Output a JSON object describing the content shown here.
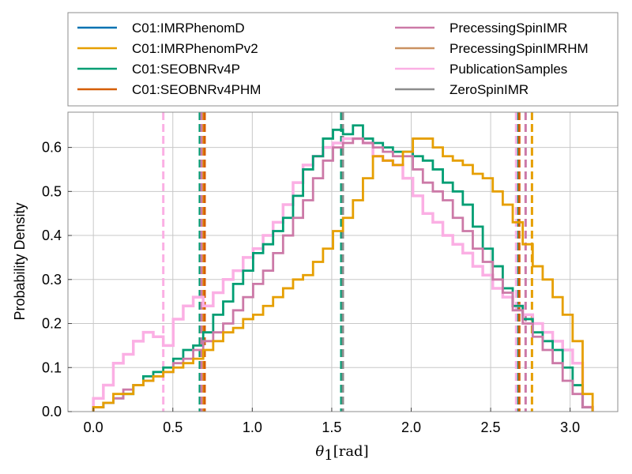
{
  "chart_data": {
    "type": "histogram",
    "xlabel": "θ₁[rad]",
    "xlabel_symbol": "θ",
    "xlabel_subscript": "1",
    "xlabel_unit": "[rad]",
    "ylabel": "Probability Density",
    "xlim": [
      -0.16,
      3.3
    ],
    "ylim": [
      0.0,
      0.68
    ],
    "xticks": [
      0.0,
      0.5,
      1.0,
      1.5,
      2.0,
      2.5,
      3.0
    ],
    "xtick_labels": [
      "0.0",
      "0.5",
      "1.0",
      "1.5",
      "2.0",
      "2.5",
      "3.0"
    ],
    "yticks": [
      0.0,
      0.1,
      0.2,
      0.3,
      0.4,
      0.5,
      0.6
    ],
    "ytick_labels": [
      "0.0",
      "0.1",
      "0.2",
      "0.3",
      "0.4",
      "0.5",
      "0.6"
    ],
    "grid": true,
    "legend_placement": "above plot, two columns",
    "bins": {
      "start": 0.0,
      "end": 3.1416,
      "count": 50
    },
    "series": [
      {
        "name": "C01:IMRPhenomD",
        "color": "#0072b2",
        "lines": [],
        "values": []
      },
      {
        "name": "C01:IMRPhenomPv2",
        "color": "#e69f00",
        "lines": [
          0.69,
          1.57,
          2.76
        ],
        "values": [
          0.01,
          0.02,
          0.04,
          0.04,
          0.06,
          0.07,
          0.08,
          0.09,
          0.1,
          0.11,
          0.12,
          0.14,
          0.16,
          0.18,
          0.19,
          0.21,
          0.22,
          0.24,
          0.26,
          0.28,
          0.3,
          0.31,
          0.34,
          0.37,
          0.41,
          0.44,
          0.48,
          0.53,
          0.58,
          0.57,
          0.56,
          0.59,
          0.62,
          0.62,
          0.6,
          0.58,
          0.57,
          0.56,
          0.54,
          0.53,
          0.5,
          0.47,
          0.43,
          0.38,
          0.33,
          0.3,
          0.26,
          0.22,
          0.16,
          0.04
        ]
      },
      {
        "name": "C01:SEOBNRv4P",
        "color": "#009e73",
        "lines": [
          0.67,
          1.56,
          2.67
        ],
        "values": [
          0.01,
          0.02,
          0.03,
          0.04,
          0.06,
          0.08,
          0.09,
          0.1,
          0.12,
          0.14,
          0.15,
          0.18,
          0.22,
          0.25,
          0.29,
          0.32,
          0.36,
          0.38,
          0.41,
          0.44,
          0.49,
          0.55,
          0.58,
          0.62,
          0.64,
          0.63,
          0.65,
          0.62,
          0.61,
          0.6,
          0.59,
          0.59,
          0.58,
          0.57,
          0.55,
          0.52,
          0.5,
          0.47,
          0.42,
          0.37,
          0.33,
          0.28,
          0.24,
          0.21,
          0.18,
          0.16,
          0.14,
          0.1,
          0.06,
          0.01
        ]
      },
      {
        "name": "C01:SEOBNRv4PHM",
        "color": "#d55e00",
        "lines": [
          0.7,
          1.57,
          2.68
        ],
        "values": []
      },
      {
        "name": "PrecessingSpinIMR",
        "color": "#cc79a7",
        "lines": [
          0.68,
          1.57,
          2.72
        ],
        "values": [
          0.01,
          0.02,
          0.03,
          0.05,
          0.06,
          0.07,
          0.08,
          0.09,
          0.11,
          0.12,
          0.14,
          0.16,
          0.18,
          0.2,
          0.23,
          0.26,
          0.29,
          0.32,
          0.36,
          0.4,
          0.44,
          0.48,
          0.53,
          0.57,
          0.6,
          0.61,
          0.62,
          0.61,
          0.6,
          0.59,
          0.58,
          0.58,
          0.55,
          0.52,
          0.5,
          0.48,
          0.44,
          0.41,
          0.37,
          0.34,
          0.3,
          0.27,
          0.23,
          0.2,
          0.17,
          0.14,
          0.11,
          0.07,
          0.04,
          0.01
        ]
      },
      {
        "name": "PrecessingSpinIMRHM",
        "color": "#ca9161",
        "lines": [],
        "values": []
      },
      {
        "name": "PublicationSamples",
        "color": "#fbafe4",
        "lines": [
          0.44,
          1.57,
          2.66
        ],
        "values": [
          0.03,
          0.06,
          0.11,
          0.13,
          0.16,
          0.18,
          0.17,
          0.15,
          0.21,
          0.24,
          0.26,
          0.24,
          0.27,
          0.3,
          0.32,
          0.35,
          0.37,
          0.4,
          0.43,
          0.47,
          0.52,
          0.56,
          0.58,
          0.6,
          0.61,
          0.62,
          0.62,
          0.61,
          0.58,
          0.57,
          0.56,
          0.53,
          0.49,
          0.45,
          0.43,
          0.4,
          0.38,
          0.36,
          0.33,
          0.31,
          0.28,
          0.26,
          0.24,
          0.22,
          0.2,
          0.18,
          0.16,
          0.14,
          0.11,
          0.01
        ]
      },
      {
        "name": "ZeroSpinIMR",
        "color": "#8c8c8c",
        "lines": [
          1.57
        ],
        "values": []
      }
    ]
  }
}
